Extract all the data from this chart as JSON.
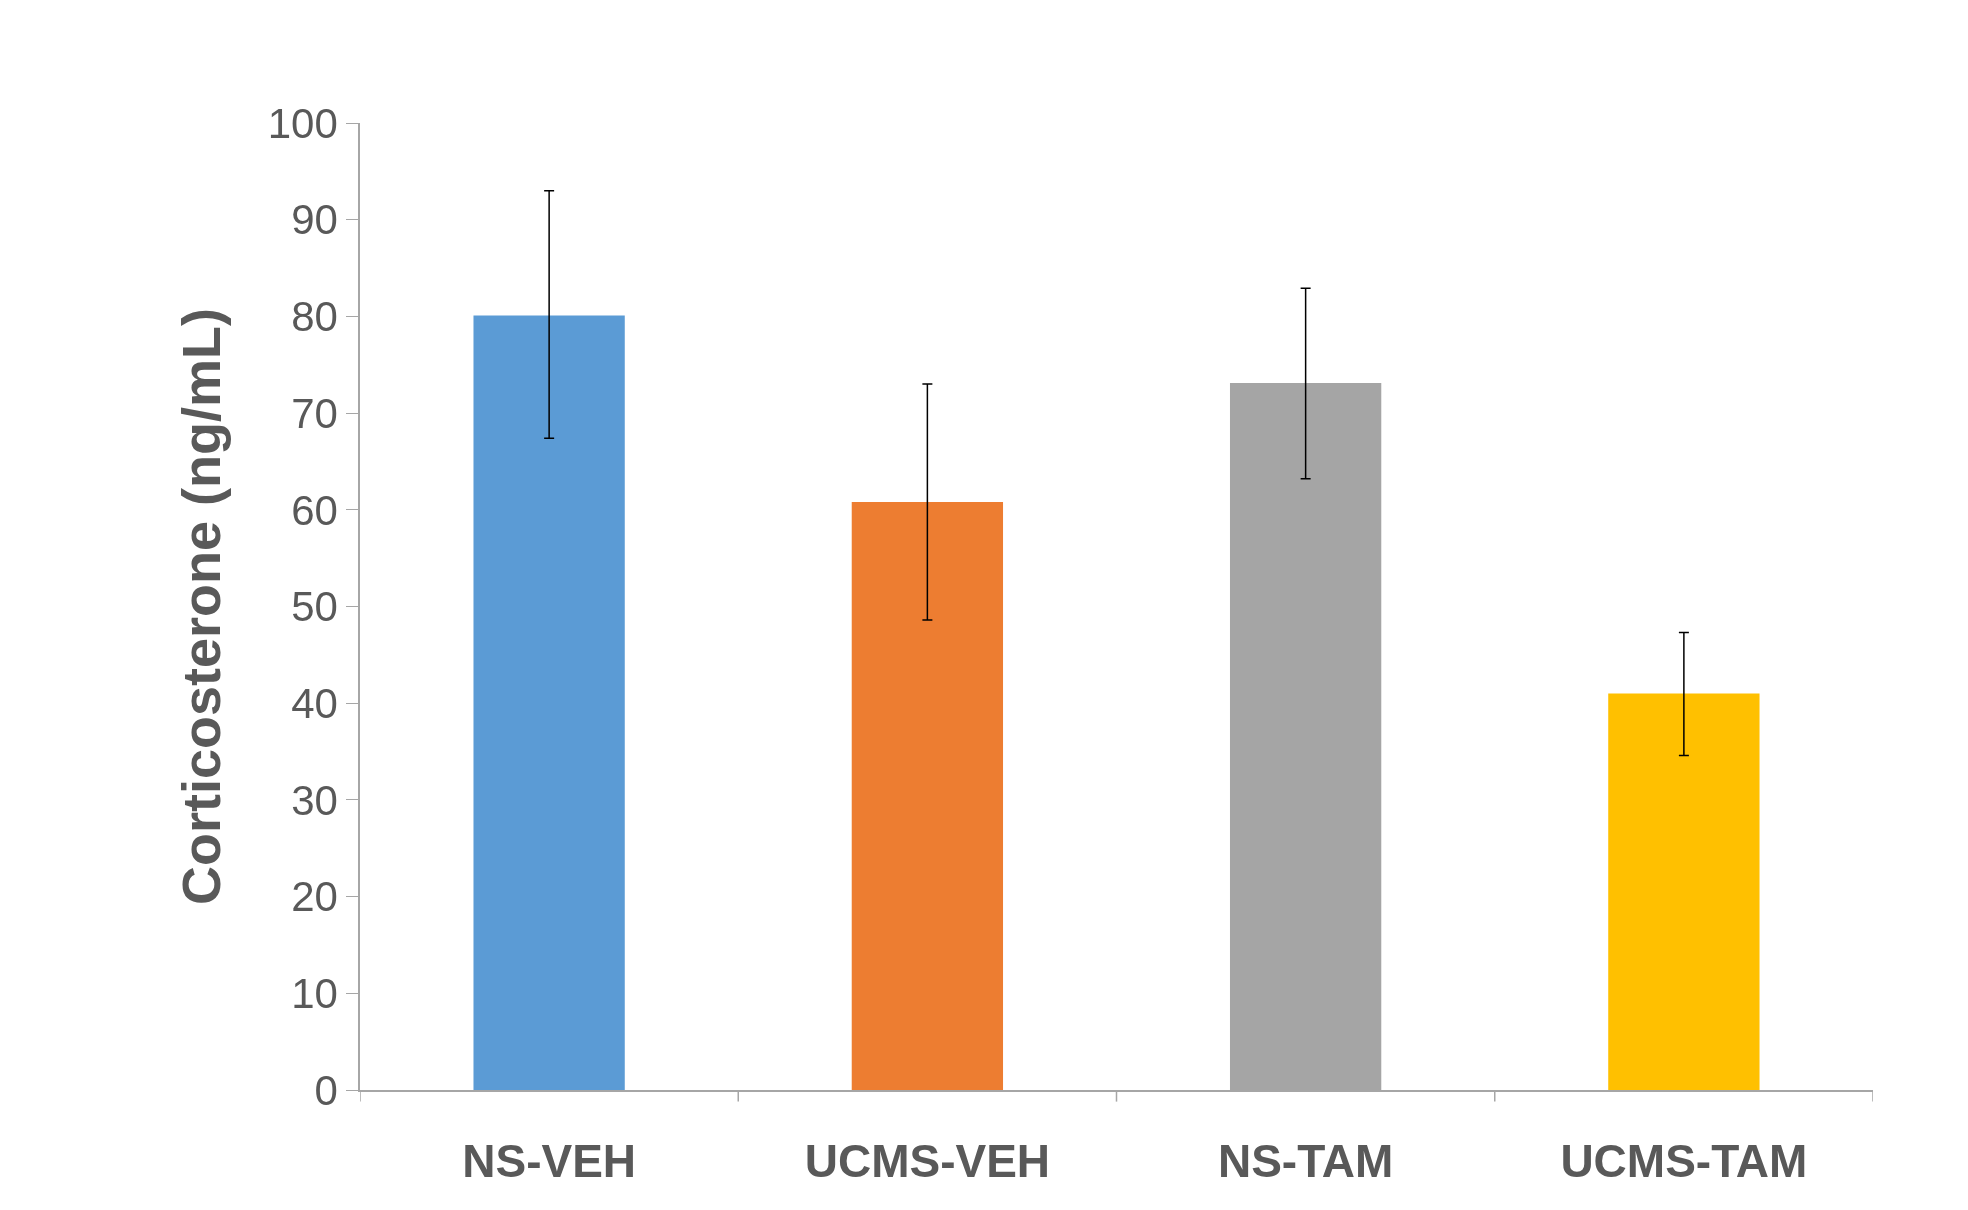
{
  "chart_data": {
    "type": "bar",
    "ylabel": "Corticosterone (ng/mL)",
    "categories": [
      "NS-VEH",
      "UCMS-VEH",
      "NS-TAM",
      "UCMS-TAM"
    ],
    "values": [
      80.1,
      60.8,
      73.1,
      41.0
    ],
    "colors": [
      "#5b9bd5",
      "#ed7d31",
      "#a5a5a5",
      "#ffc000"
    ],
    "errors": [
      [
        67.4,
        93.0
      ],
      [
        48.6,
        73.0
      ],
      [
        63.2,
        82.9
      ],
      [
        34.6,
        47.3
      ]
    ],
    "ylim": [
      0,
      100
    ],
    "yticks": [
      0,
      10,
      20,
      30,
      40,
      50,
      60,
      70,
      80,
      90,
      100
    ],
    "grid": false
  }
}
